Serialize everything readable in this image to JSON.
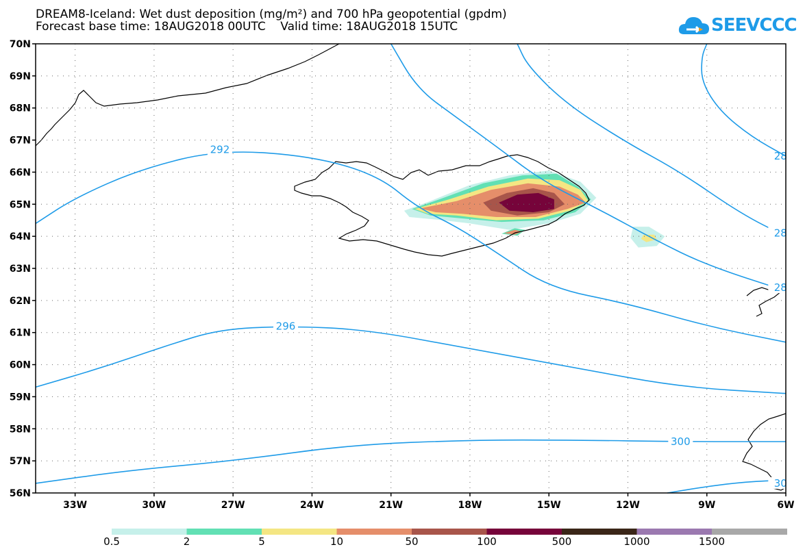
{
  "title": {
    "line1": "DREAM8-Iceland: Wet dust deposition (mg/m²) and 700 hPa geopotential (gpdm)",
    "line2": "Forecast base time: 18AUG2018 00UTC    Valid time: 18AUG2018 15UTC"
  },
  "logo": {
    "text": "SEEVCCC",
    "icon": "cloud-icon",
    "color": "#1e9be8"
  },
  "map": {
    "lon_range": [
      -34.5,
      -6.0
    ],
    "lat_range": [
      56.0,
      70.0
    ],
    "lon_ticks": [
      {
        "value": -33,
        "label": "33W"
      },
      {
        "value": -30,
        "label": "30W"
      },
      {
        "value": -27,
        "label": "27W"
      },
      {
        "value": -24,
        "label": "24W"
      },
      {
        "value": -21,
        "label": "21W"
      },
      {
        "value": -18,
        "label": "18W"
      },
      {
        "value": -15,
        "label": "15W"
      },
      {
        "value": -12,
        "label": "12W"
      },
      {
        "value": -9,
        "label": "9W"
      },
      {
        "value": -6,
        "label": "6W"
      }
    ],
    "lat_ticks": [
      {
        "value": 70,
        "label": "70N"
      },
      {
        "value": 69,
        "label": "69N"
      },
      {
        "value": 68,
        "label": "68N"
      },
      {
        "value": 67,
        "label": "67N"
      },
      {
        "value": 66,
        "label": "66N"
      },
      {
        "value": 65,
        "label": "65N"
      },
      {
        "value": 64,
        "label": "64N"
      },
      {
        "value": 63,
        "label": "63N"
      },
      {
        "value": 62,
        "label": "62N"
      },
      {
        "value": 61,
        "label": "61N"
      },
      {
        "value": 60,
        "label": "60N"
      },
      {
        "value": 59,
        "label": "59N"
      },
      {
        "value": 58,
        "label": "58N"
      },
      {
        "value": 57,
        "label": "57N"
      },
      {
        "value": 56,
        "label": "56N"
      }
    ],
    "grid": "dotted",
    "contour_color": "#1e9be8",
    "contours": [
      {
        "label": "292",
        "label_at": [
          -27.5,
          66.7
        ],
        "points": [
          [
            -34.5,
            64.4
          ],
          [
            -33,
            65.2
          ],
          [
            -30.5,
            66.1
          ],
          [
            -27.5,
            66.7
          ],
          [
            -24,
            66.5
          ],
          [
            -21.5,
            65.9
          ],
          [
            -20,
            64.9
          ],
          [
            -18.5,
            64.3
          ],
          [
            -17,
            63.5
          ],
          [
            -15,
            62.4
          ],
          [
            -12,
            61.9
          ],
          [
            -9,
            61.2
          ],
          [
            -6,
            60.7
          ]
        ]
      },
      {
        "label": "296",
        "label_at": [
          -25.0,
          61.2
        ],
        "points": [
          [
            -34.5,
            59.3
          ],
          [
            -32,
            59.9
          ],
          [
            -29.5,
            60.6
          ],
          [
            -27.5,
            61.1
          ],
          [
            -25,
            61.2
          ],
          [
            -22,
            61.1
          ],
          [
            -18,
            60.5
          ],
          [
            -14,
            59.9
          ],
          [
            -10,
            59.3
          ],
          [
            -6,
            59.1
          ]
        ]
      },
      {
        "label": "300",
        "label_at": [
          -10.0,
          57.6
        ],
        "points": [
          [
            -34.5,
            56.3
          ],
          [
            -31,
            56.7
          ],
          [
            -27,
            57.0
          ],
          [
            -22.5,
            57.5
          ],
          [
            -18,
            57.65
          ],
          [
            -14,
            57.65
          ],
          [
            -10,
            57.6
          ],
          [
            -6,
            57.6
          ]
        ]
      },
      {
        "label": "28",
        "label_at": [
          -6.2,
          66.5
        ],
        "points": [
          [
            -21,
            70.0
          ],
          [
            -20,
            68.6
          ],
          [
            -18.5,
            67.7
          ],
          [
            -17,
            66.8
          ],
          [
            -15.2,
            65.7
          ],
          [
            -13,
            64.8
          ],
          [
            -11,
            63.9
          ],
          [
            -9,
            63.1
          ],
          [
            -6,
            62.3
          ]
        ]
      },
      {
        "label": "28",
        "label_at": [
          -6.2,
          64.1
        ],
        "points": [
          [
            -16.2,
            70.0
          ],
          [
            -15.8,
            69.3
          ],
          [
            -14.3,
            68.1
          ],
          [
            -12,
            66.9
          ],
          [
            -10,
            66.0
          ],
          [
            -7.7,
            64.7
          ],
          [
            -6,
            64.0
          ]
        ]
      },
      {
        "label": "28",
        "label_at": [
          -6.2,
          62.4
        ],
        "points": [
          [
            -9,
            70.0
          ],
          [
            -9.2,
            69.6
          ],
          [
            -9.2,
            68.8
          ],
          [
            -8.5,
            67.9
          ],
          [
            -7.3,
            67.1
          ],
          [
            -6,
            66.5
          ]
        ]
      },
      {
        "label": "30",
        "label_at": [
          -6.2,
          56.3
        ],
        "points": [
          [
            -10.5,
            56.0
          ],
          [
            -9,
            56.2
          ],
          [
            -7.5,
            56.35
          ],
          [
            -6,
            56.4
          ]
        ]
      }
    ],
    "dust_levels": [
      {
        "value": 0.5,
        "color": "#c6f0ea"
      },
      {
        "value": 2,
        "color": "#62e0b4"
      },
      {
        "value": 5,
        "color": "#f4e683"
      },
      {
        "value": 10,
        "color": "#e58e6a"
      },
      {
        "value": 50,
        "color": "#a8554a"
      },
      {
        "value": 100,
        "color": "#76043a"
      }
    ]
  },
  "colorbar": {
    "bins": [
      {
        "label": "0.5",
        "color": "#c6f0ea"
      },
      {
        "label": "2",
        "color": "#62e0b4"
      },
      {
        "label": "5",
        "color": "#f4e683"
      },
      {
        "label": "10",
        "color": "#e58e6a"
      },
      {
        "label": "50",
        "color": "#a8554a"
      },
      {
        "label": "100",
        "color": "#76043a"
      },
      {
        "label": "500",
        "color": "#3a2618"
      },
      {
        "label": "1000",
        "color": "#9b79b0"
      },
      {
        "label": "1500",
        "color": "#a8a8a8"
      }
    ]
  }
}
